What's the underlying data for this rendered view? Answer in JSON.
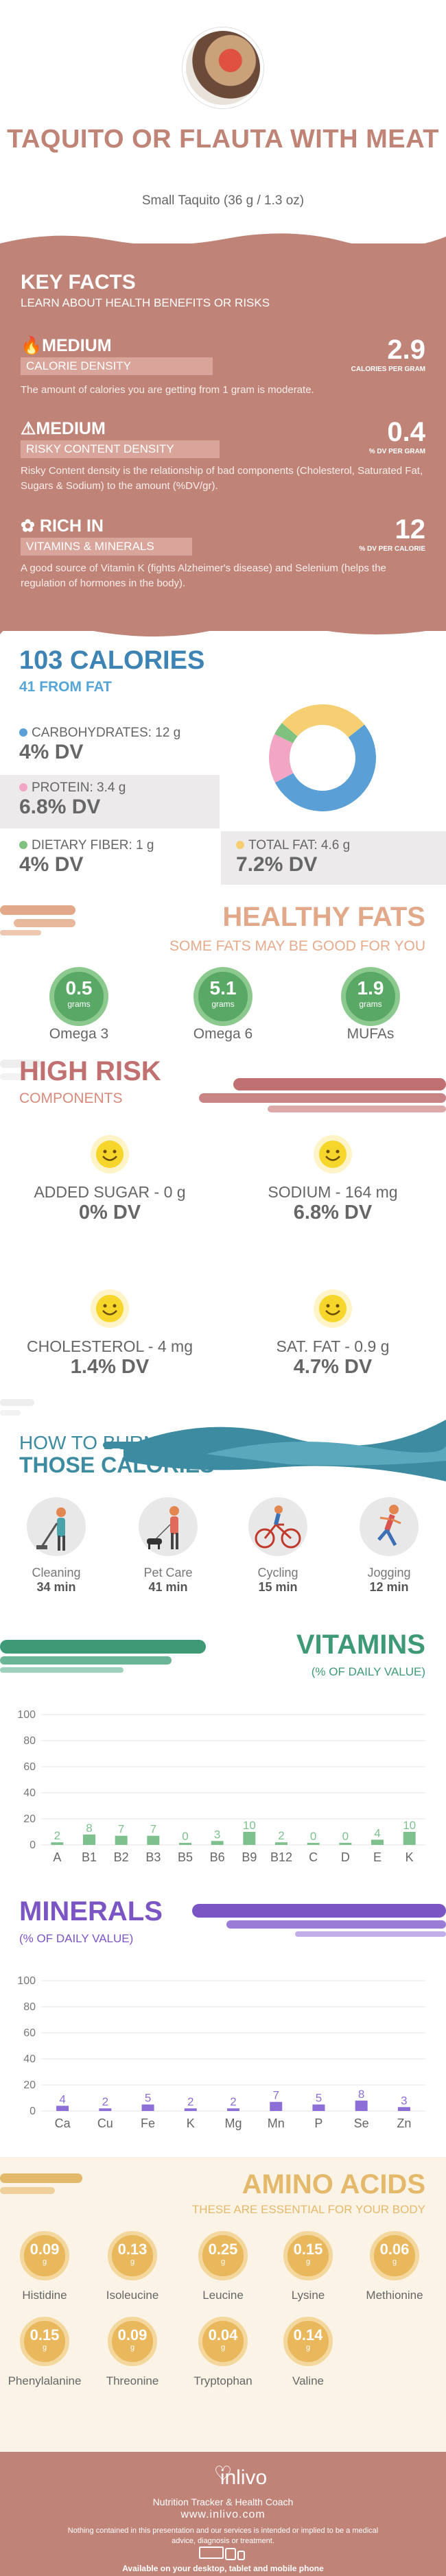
{
  "header": {
    "title": "TAQUITO OR FLAUTA WITH MEAT",
    "serving": "Small Taquito (36 g / 1.3 oz)"
  },
  "key_facts": {
    "title": "KEY FACTS",
    "subtitle": "LEARN ABOUT HEALTH BENEFITS OR RISKS",
    "calorie": {
      "level": "MEDIUM",
      "label": "CALORIE DENSITY",
      "value": "2.9",
      "unit": "CALORIES PER GRAM",
      "desc": "The amount of calories you are getting from 1 gram is moderate."
    },
    "risky": {
      "level": "MEDIUM",
      "label": "RISKY CONTENT DENSITY",
      "value": "0.4",
      "unit": "% DV PER GRAM",
      "desc": "Risky Content density is the relationship of bad components (Cholesterol, Saturated Fat, Sugars & Sodium) to the amount (%DV/gr)."
    },
    "rich": {
      "level": "RICH IN",
      "label": "VITAMINS & MINERALS",
      "value": "12",
      "unit": "% DV PER CALORIE",
      "desc": "A good source of Vitamin K (fights Alzheimer's disease) and Selenium (helps the regulation of hormones in the body)."
    }
  },
  "calories": {
    "title": "103 CALORIES",
    "fat": "41 FROM FAT",
    "carbs": {
      "label": "CARBOHYDRATES: 12 g",
      "dv": "4% DV"
    },
    "protein": {
      "label": "PROTEIN: 3.4 g",
      "dv": "6.8% DV"
    },
    "fiber": {
      "label": "DIETARY FIBER: 1 g",
      "dv": "4% DV"
    },
    "total_fat": {
      "label": "TOTAL FAT: 4.6 g",
      "dv": "7.2% DV"
    },
    "colors": {
      "carbs": "#5aa0d6",
      "protein": "#f3a6c4",
      "fiber": "#7fc27f",
      "fat": "#f5cf72"
    }
  },
  "chart_data": [
    {
      "type": "pie",
      "title": "",
      "labels": [
        "Carbohydrates",
        "Protein",
        "Dietary Fiber",
        "Total Fat"
      ],
      "values": [
        53,
        15,
        4,
        28
      ]
    },
    {
      "type": "bar",
      "title": "VITAMINS",
      "ylabel": "(% OF DAILY VALUE)",
      "ylim": [
        0,
        100
      ],
      "categories": [
        "A",
        "B1",
        "B2",
        "B3",
        "B5",
        "B6",
        "B9",
        "B12",
        "C",
        "D",
        "E",
        "K"
      ],
      "values": [
        2,
        8,
        7,
        7,
        0,
        3,
        10,
        2,
        0,
        0,
        4,
        10
      ]
    },
    {
      "type": "bar",
      "title": "MINERALS",
      "ylabel": "(% OF DAILY VALUE)",
      "ylim": [
        0,
        100
      ],
      "categories": [
        "Ca",
        "Cu",
        "Fe",
        "K",
        "Mg",
        "Mn",
        "P",
        "Se",
        "Zn"
      ],
      "values": [
        4,
        2,
        5,
        2,
        2,
        7,
        5,
        8,
        3
      ]
    }
  ],
  "healthy_fats": {
    "title": "HEALTHY FATS",
    "subtitle": "SOME FATS MAY BE GOOD FOR YOU",
    "items": [
      {
        "value": "0.5",
        "unit": "grams",
        "name": "Omega 3"
      },
      {
        "value": "5.1",
        "unit": "grams",
        "name": "Omega 6"
      },
      {
        "value": "1.9",
        "unit": "grams",
        "name": "MUFAs"
      }
    ]
  },
  "high_risk": {
    "title": "HIGH RISK",
    "subtitle": "COMPONENTS",
    "items": [
      {
        "label": "ADDED SUGAR - 0 g",
        "dv": "0% DV"
      },
      {
        "label": "SODIUM - 164 mg",
        "dv": "6.8% DV"
      },
      {
        "label": "CHOLESTEROL - 4 mg",
        "dv": "1.4% DV"
      },
      {
        "label": "SAT. FAT - 0.9 g",
        "dv": "4.7% DV"
      }
    ]
  },
  "burn": {
    "title1": "HOW TO BURN",
    "title2": "THOSE CALORIES",
    "items": [
      {
        "name": "Cleaning",
        "minutes": "34 min",
        "icon": "cleaning-icon"
      },
      {
        "name": "Pet Care",
        "minutes": "41 min",
        "icon": "pet-care-icon"
      },
      {
        "name": "Cycling",
        "minutes": "15 min",
        "icon": "cycling-icon"
      },
      {
        "name": "Jogging",
        "minutes": "12 min",
        "icon": "jogging-icon"
      }
    ]
  },
  "vitamins": {
    "title": "VITAMINS",
    "subtitle": "(% OF DAILY VALUE)",
    "color": "#7fc08f"
  },
  "minerals": {
    "title": "MINERALS",
    "subtitle": "(% OF DAILY VALUE)",
    "color": "#8c6fd6"
  },
  "axis_ticks": [
    "0",
    "20",
    "40",
    "60",
    "80",
    "100"
  ],
  "amino": {
    "title": "AMINO ACIDS",
    "subtitle": "THESE ARE ESSENTIAL FOR YOUR BODY",
    "items": [
      {
        "value": "0.09",
        "unit": "g",
        "name": "Histidine"
      },
      {
        "value": "0.13",
        "unit": "g",
        "name": "Isoleucine"
      },
      {
        "value": "0.25",
        "unit": "g",
        "name": "Leucine"
      },
      {
        "value": "0.15",
        "unit": "g",
        "name": "Lysine"
      },
      {
        "value": "0.06",
        "unit": "g",
        "name": "Methionine"
      },
      {
        "value": "0.15",
        "unit": "g",
        "name": "Phenylalanine"
      },
      {
        "value": "0.09",
        "unit": "g",
        "name": "Threonine"
      },
      {
        "value": "0.04",
        "unit": "g",
        "name": "Tryptophan"
      },
      {
        "value": "0.14",
        "unit": "g",
        "name": "Valine"
      }
    ]
  },
  "footer": {
    "brand": "inlivo",
    "tagline": "Nutrition Tracker & Health Coach",
    "url": "www.inlivo.com",
    "disclaimer": "Nothing contained in this presentation and our services is intended or implied to be a medical advice, diagnosis or treatment.",
    "available": "Available on your desktop, tablet and mobile phone"
  }
}
